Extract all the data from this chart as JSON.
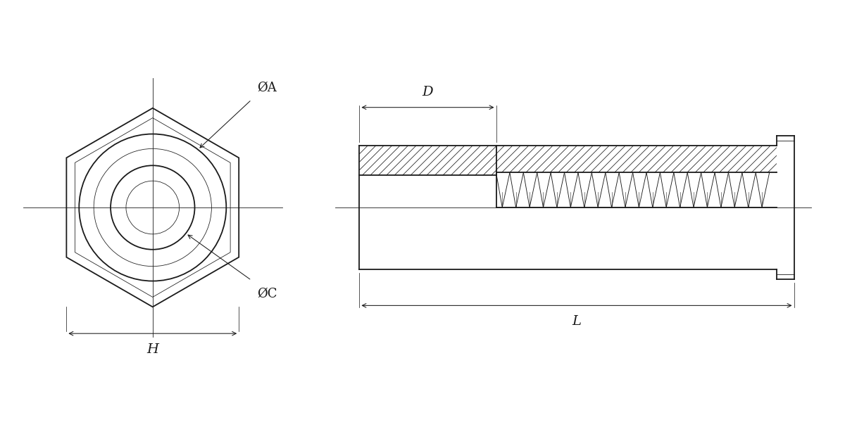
{
  "bg_color": "#ffffff",
  "line_color": "#1a1a1a",
  "lw": 1.3,
  "tlw": 0.75,
  "clw": 0.6,
  "fig_w": 12.0,
  "fig_h": 6.0,
  "label_PhiA": "ØA",
  "label_PhiC": "ØC",
  "label_H": "H",
  "label_D": "D",
  "label_L": "L"
}
